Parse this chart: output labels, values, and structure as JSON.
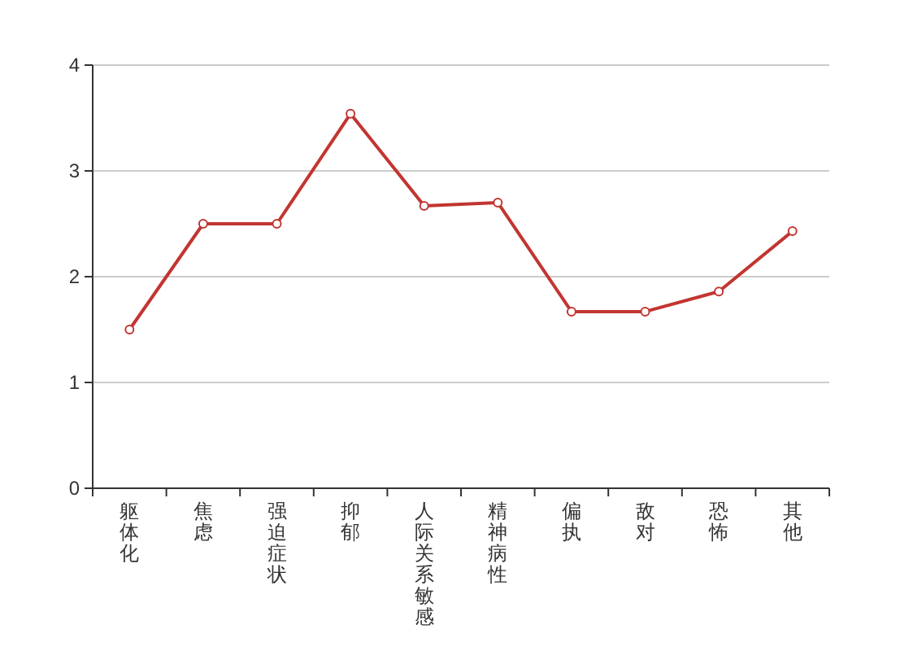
{
  "chart_data": {
    "type": "line",
    "categories": [
      "躯体化",
      "焦虑",
      "强迫症状",
      "抑郁",
      "人际关系敏感",
      "精神病性",
      "偏执",
      "敌对",
      "恐怖",
      "其他"
    ],
    "series": [
      {
        "color": "#c23531",
        "values": [
          1.5,
          2.5,
          2.5,
          3.54,
          2.67,
          2.7,
          1.67,
          1.67,
          1.86,
          2.43
        ]
      }
    ],
    "ylim": [
      0,
      4
    ],
    "yticks": [
      0,
      1,
      2,
      3,
      4
    ],
    "grid": "y",
    "marker": "circle",
    "line_style": "solid"
  }
}
